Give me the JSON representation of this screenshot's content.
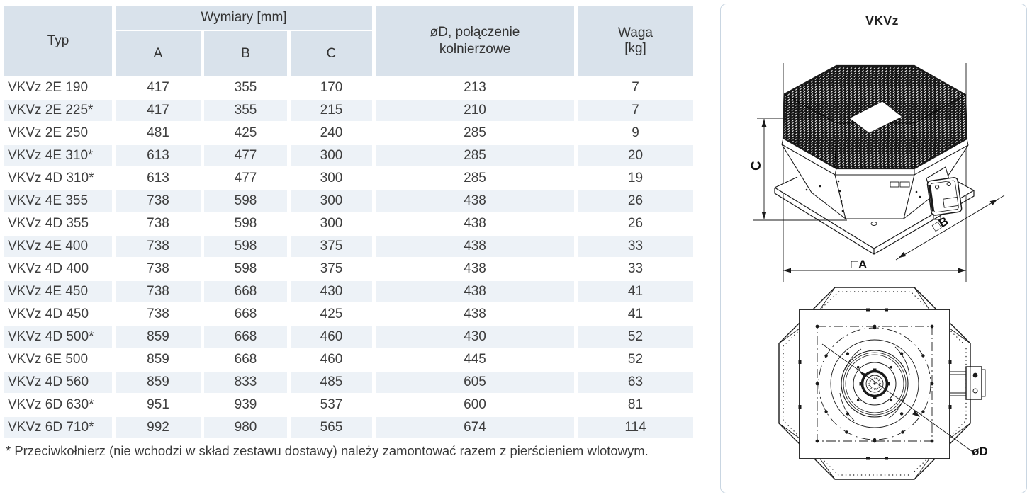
{
  "colors": {
    "header_bg": "#d9e2eb",
    "row_alt_bg": "#edf2f7",
    "text": "#3e3e3e",
    "panel_border": "#c9d6e2",
    "line": "#1a1a1a"
  },
  "table": {
    "header": {
      "typ": "Typ",
      "dims_group": "Wymiary [mm]",
      "col_a": "A",
      "col_b": "B",
      "col_c": "C",
      "flange": "øD, połączenie kołnierzowe",
      "weight_line1": "Waga",
      "weight_line2": "[kg]"
    },
    "rows": [
      {
        "typ": "VKVz 2E 190",
        "a": "417",
        "b": "355",
        "c": "170",
        "od": "213",
        "waga": "7"
      },
      {
        "typ": "VKVz 2E 225*",
        "a": "417",
        "b": "355",
        "c": "215",
        "od": "210",
        "waga": "7"
      },
      {
        "typ": "VKVz 2E 250",
        "a": "481",
        "b": "425",
        "c": "240",
        "od": "285",
        "waga": "9"
      },
      {
        "typ": "VKVz 4E 310*",
        "a": "613",
        "b": "477",
        "c": "300",
        "od": "285",
        "waga": "20"
      },
      {
        "typ": "VKVz 4D 310*",
        "a": "613",
        "b": "477",
        "c": "300",
        "od": "285",
        "waga": "19"
      },
      {
        "typ": "VKVz 4E 355",
        "a": "738",
        "b": "598",
        "c": "300",
        "od": "438",
        "waga": "26"
      },
      {
        "typ": "VKVz 4D 355",
        "a": "738",
        "b": "598",
        "c": "300",
        "od": "438",
        "waga": "26"
      },
      {
        "typ": "VKVz 4E 400",
        "a": "738",
        "b": "598",
        "c": "375",
        "od": "438",
        "waga": "33"
      },
      {
        "typ": "VKVz 4D 400",
        "a": "738",
        "b": "598",
        "c": "375",
        "od": "438",
        "waga": "33"
      },
      {
        "typ": "VKVz 4E 450",
        "a": "738",
        "b": "668",
        "c": "430",
        "od": "438",
        "waga": "41"
      },
      {
        "typ": "VKVz 4D 450",
        "a": "738",
        "b": "668",
        "c": "425",
        "od": "438",
        "waga": "41"
      },
      {
        "typ": "VKVz 4D 500*",
        "a": "859",
        "b": "668",
        "c": "460",
        "od": "430",
        "waga": "52"
      },
      {
        "typ": "VKVz 6E 500",
        "a": "859",
        "b": "668",
        "c": "460",
        "od": "445",
        "waga": "52"
      },
      {
        "typ": "VKVz 4D 560",
        "a": "859",
        "b": "833",
        "c": "485",
        "od": "605",
        "waga": "63"
      },
      {
        "typ": "VKVz 6D 630*",
        "a": "951",
        "b": "939",
        "c": "537",
        "od": "600",
        "waga": "81"
      },
      {
        "typ": "VKVz 6D 710*",
        "a": "992",
        "b": "980",
        "c": "565",
        "od": "674",
        "waga": "114"
      }
    ]
  },
  "footnote": "* Przeciwkołnierz (nie wchodzi w skład zestawu dostawy) należy zamontować razem z pierścieniem wlotowym.",
  "diagram": {
    "title": "VKVz",
    "dim_c": "C",
    "dim_a": "□A",
    "dim_b": "□B",
    "dim_d": "øD"
  }
}
